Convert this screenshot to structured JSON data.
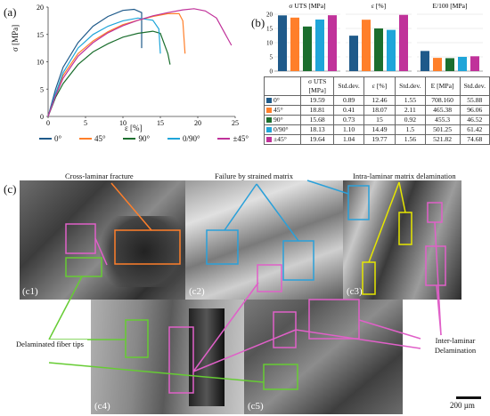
{
  "panel_labels": {
    "a": "(a)",
    "b": "(b)",
    "c": "(c)"
  },
  "chart_a": {
    "ylabel": "σ [MPa]",
    "xlabel": "ε [%]",
    "xticks": [
      "0",
      "5",
      "10",
      "15",
      "20",
      "25"
    ],
    "yticks": [
      "0",
      "5",
      "10",
      "15",
      "20"
    ]
  },
  "legend_a": [
    {
      "label": "0°",
      "color": "#1f5a8a"
    },
    {
      "label": "45°",
      "color": "#ff7f2a"
    },
    {
      "label": "90°",
      "color": "#1b6e2e"
    },
    {
      "label": "0/90°",
      "color": "#1fa5d9"
    },
    {
      "label": "±45°",
      "color": "#c0329a"
    }
  ],
  "chart_b_headers": [
    "σ UTS [MPa]",
    "ε [%]",
    "E/100 [MPa]"
  ],
  "chart_b_yticks": [
    "0",
    "5",
    "10",
    "15",
    "20"
  ],
  "table": {
    "head": [
      "σ UTS [MPa]",
      "Std.dev.",
      "ε [%]",
      "Std.dev.",
      "E [MPa]",
      "Std.dev."
    ],
    "rows": [
      {
        "label": "0°",
        "color": "#1f5a8a",
        "cells": [
          "19.59",
          "0.89",
          "12.46",
          "1.55",
          "708.160",
          "55.88"
        ]
      },
      {
        "label": "45°",
        "color": "#ff7f2a",
        "cells": [
          "18.81",
          "0.41",
          "18.07",
          "2.11",
          "465.38",
          "96.06"
        ]
      },
      {
        "label": "90°",
        "color": "#1b6e2e",
        "cells": [
          "15.68",
          "0.73",
          "15",
          "0.92",
          "455.3",
          "46.52"
        ]
      },
      {
        "label": "0/90°",
        "color": "#1fa5d9",
        "cells": [
          "18.13",
          "1.10",
          "14.49",
          "1.5",
          "501.25",
          "61.42"
        ]
      },
      {
        "label": "±45°",
        "color": "#c0329a",
        "cells": [
          "19.64",
          "1.04",
          "19.77",
          "1.56",
          "521.82",
          "74.68"
        ]
      }
    ]
  },
  "chart_data": [
    {
      "type": "line",
      "xlabel": "ε [%]",
      "ylabel": "σ [MPa]",
      "xlim": [
        0,
        25
      ],
      "ylim": [
        0,
        20
      ],
      "series": [
        {
          "name": "0°",
          "color": "#1f5a8a",
          "x": [
            0,
            1,
            2,
            4,
            6,
            8,
            10,
            11.5,
            12.5,
            12.5
          ],
          "y": [
            0,
            5,
            9,
            13.5,
            16.5,
            18.3,
            19.4,
            19.6,
            19,
            12.5
          ]
        },
        {
          "name": "45°",
          "color": "#ff7f2a",
          "x": [
            0,
            1,
            2,
            4,
            6,
            8,
            10,
            12,
            14,
            16,
            17.5,
            18,
            18.3
          ],
          "y": [
            0,
            4,
            7.5,
            11.5,
            13.8,
            15.5,
            16.8,
            17.6,
            18.3,
            18.8,
            18.8,
            17.5,
            11.5
          ]
        },
        {
          "name": "90°",
          "color": "#1b6e2e",
          "x": [
            0,
            1,
            2,
            4,
            6,
            8,
            10,
            12,
            14,
            15,
            16,
            16.3
          ],
          "y": [
            0,
            3.5,
            6,
            9.5,
            11.8,
            13.3,
            14.5,
            15.2,
            15.6,
            15.2,
            11.5,
            9.5
          ]
        },
        {
          "name": "0/90°",
          "color": "#1fa5d9",
          "x": [
            0,
            1,
            2,
            4,
            6,
            8,
            10,
            12,
            14,
            14.8,
            15
          ],
          "y": [
            0,
            4.2,
            8,
            12.5,
            15,
            16.5,
            17.5,
            18,
            17.6,
            16,
            11.5
          ]
        },
        {
          "name": "±45°",
          "color": "#c0329a",
          "x": [
            0,
            1,
            2,
            4,
            6,
            8,
            10,
            12,
            14,
            16,
            18,
            19.5,
            21,
            22.5,
            23.5,
            24.5
          ],
          "y": [
            0,
            3.8,
            7,
            11,
            13.5,
            15.3,
            16.6,
            17.6,
            18.4,
            19,
            19.5,
            19.7,
            19.3,
            18,
            15.5,
            13
          ]
        }
      ]
    },
    {
      "type": "bar",
      "title": "σ UTS [MPa]",
      "categories": [
        "0°",
        "45°",
        "90°",
        "0/90°",
        "±45°"
      ],
      "values": [
        19.59,
        18.81,
        15.68,
        18.13,
        19.64
      ],
      "ylim": [
        0,
        20
      ]
    },
    {
      "type": "bar",
      "title": "ε [%]",
      "categories": [
        "0°",
        "45°",
        "90°",
        "0/90°",
        "±45°"
      ],
      "values": [
        12.46,
        18.07,
        15,
        14.49,
        19.77
      ],
      "ylim": [
        0,
        20
      ]
    },
    {
      "type": "bar",
      "title": "E/100 [MPa]",
      "categories": [
        "0°",
        "45°",
        "90°",
        "0/90°",
        "±45°"
      ],
      "values": [
        7.0816,
        4.6538,
        4.553,
        5.0125,
        5.2182
      ],
      "ylim": [
        0,
        20
      ]
    }
  ],
  "annotations": {
    "cross_laminar": "Cross-laminar fracture",
    "failure_matrix": "Failure by strained matrix",
    "intra_laminar": "Intra-laminar matrix delamination",
    "delam_fiber": "Delaminated fiber tips",
    "inter_laminar": "Inter-laminar Delamination"
  },
  "sublabels": [
    "(c1)",
    "(c2)",
    "(c3)",
    "(c4)",
    "(c5)"
  ],
  "scale_bar": "200 µm",
  "annot_colors": {
    "orange": "#ff7f2a",
    "blue": "#2aa0d9",
    "yellow": "#e6e600",
    "pink": "#e060c8",
    "green": "#66cc33"
  }
}
